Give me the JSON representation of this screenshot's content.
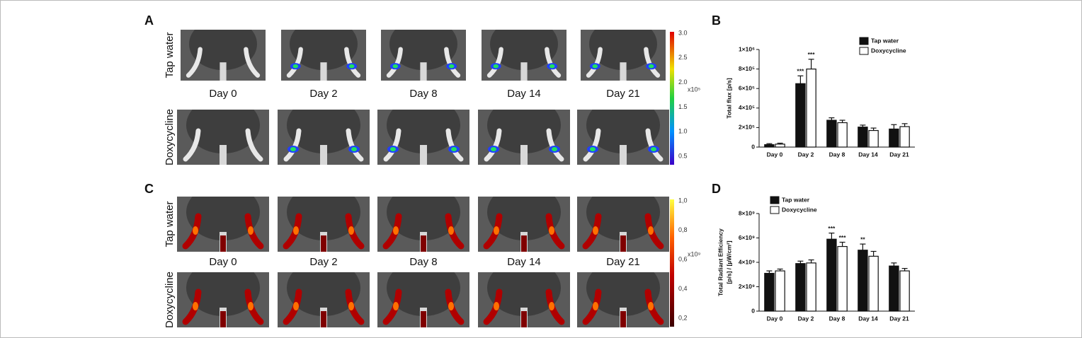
{
  "panel_a": {
    "label": "A",
    "row_labels": [
      "Tap water",
      "Doxycycline"
    ],
    "day_labels": [
      "Day 0",
      "Day 2",
      "Day 8",
      "Day 14",
      "Day 21"
    ],
    "colorbar_ticks": [
      "3.0",
      "2.5",
      "2.0",
      "1.5",
      "1.0",
      "0.5"
    ],
    "colorbar_unit": "x10⁵"
  },
  "panel_c": {
    "label": "C",
    "row_labels": [
      "Tap water",
      "Doxycycline"
    ],
    "day_labels": [
      "Day 0",
      "Day 2",
      "Day 8",
      "Day 14",
      "Day 21"
    ],
    "colorbar_ticks": [
      "1,0",
      "0,8",
      "0,6",
      "0,4",
      "0,2"
    ],
    "colorbar_unit": "x10⁹"
  },
  "chart_data": [
    {
      "type": "bar",
      "panel_label": "B",
      "ylabel": [
        "Total flux [p/s]"
      ],
      "categories": [
        "Day 0",
        "Day 2",
        "Day 8",
        "Day 14",
        "Day 21"
      ],
      "ylim": [
        0,
        1000000
      ],
      "yticks": [
        0,
        {
          "value": 200000,
          "label": "2×10⁵"
        },
        {
          "value": 400000,
          "label": "4×10⁵"
        },
        {
          "value": 600000,
          "label": "6×10⁵"
        },
        {
          "value": 800000,
          "label": "8×10⁵"
        },
        {
          "value": 1000000,
          "label": "1×10⁶"
        }
      ],
      "legend": "upper right",
      "series": [
        {
          "name": "Tap water",
          "color": "#111111",
          "values": [
            25000,
            650000,
            275000,
            205000,
            185000
          ],
          "errors": [
            10000,
            80000,
            25000,
            20000,
            45000
          ],
          "significance": [
            null,
            "***",
            null,
            null,
            null
          ]
        },
        {
          "name": "Doxycycline",
          "color": "#ffffff",
          "values": [
            30000,
            800000,
            250000,
            170000,
            210000
          ],
          "errors": [
            10000,
            100000,
            25000,
            25000,
            30000
          ],
          "significance": [
            null,
            "***",
            null,
            null,
            null
          ]
        }
      ]
    },
    {
      "type": "bar",
      "panel_label": "D",
      "ylabel": [
        "Total Radiant Efficiency",
        "[p/s] / [µW/cm²]"
      ],
      "categories": [
        "Day 0",
        "Day 2",
        "Day 8",
        "Day 14",
        "Day 21"
      ],
      "ylim": [
        0,
        8000000000
      ],
      "yticks": [
        0,
        {
          "value": 2000000000,
          "label": "2×10⁹"
        },
        {
          "value": 4000000000,
          "label": "4×10⁹"
        },
        {
          "value": 6000000000,
          "label": "6×10⁹"
        },
        {
          "value": 8000000000,
          "label": "8×10⁹"
        }
      ],
      "legend": "upper left",
      "series": [
        {
          "name": "Tap water",
          "color": "#111111",
          "values": [
            3100000000,
            3900000000,
            5900000000,
            5000000000,
            3700000000
          ],
          "errors": [
            200000000,
            200000000,
            500000000,
            500000000,
            250000000
          ],
          "significance": [
            null,
            null,
            "***",
            "**",
            null
          ]
        },
        {
          "name": "Doxycycline",
          "color": "#ffffff",
          "values": [
            3300000000,
            3950000000,
            5300000000,
            4500000000,
            3300000000
          ],
          "errors": [
            150000000,
            250000000,
            350000000,
            400000000,
            200000000
          ],
          "significance": [
            null,
            null,
            "***",
            null,
            null
          ]
        }
      ]
    }
  ]
}
